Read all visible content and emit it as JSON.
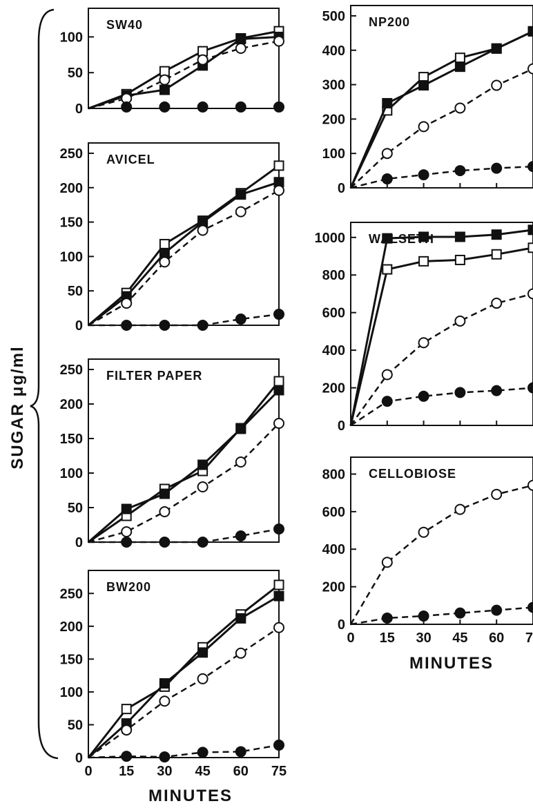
{
  "figure": {
    "ylabel": "SUGAR μg/ml",
    "xlabel_left": "MINUTES",
    "xlabel_right": "MINUTES"
  },
  "chart_data": [
    {
      "type": "line",
      "title": "SW40",
      "xlabel": "",
      "ylabel": "SUGAR μg/ml",
      "x": [
        15,
        30,
        45,
        60,
        75
      ],
      "xlim": [
        0,
        75
      ],
      "ylim": [
        0,
        140
      ],
      "yticks": [
        0,
        50,
        100
      ],
      "xticks": [],
      "series": [
        {
          "marker": "open-square",
          "style": "solid",
          "values": [
            20,
            52,
            80,
            98,
            108
          ]
        },
        {
          "marker": "filled-square",
          "style": "solid",
          "values": [
            18,
            26,
            60,
            97,
            100
          ]
        },
        {
          "marker": "open-circle",
          "style": "dashed",
          "values": [
            14,
            40,
            68,
            84,
            94
          ]
        },
        {
          "marker": "filled-circle",
          "style": "none",
          "values": [
            2,
            2,
            2,
            2,
            2
          ]
        }
      ]
    },
    {
      "type": "line",
      "title": "AVICEL",
      "xlabel": "",
      "ylabel": "SUGAR μg/ml",
      "x": [
        15,
        30,
        45,
        60,
        75
      ],
      "xlim": [
        0,
        75
      ],
      "ylim": [
        0,
        265
      ],
      "yticks": [
        0,
        50,
        100,
        150,
        200,
        250
      ],
      "xticks": [],
      "series": [
        {
          "marker": "open-square",
          "style": "solid",
          "values": [
            47,
            118,
            152,
            192,
            232
          ]
        },
        {
          "marker": "filled-square",
          "style": "solid",
          "values": [
            42,
            105,
            150,
            190,
            208
          ]
        },
        {
          "marker": "open-circle",
          "style": "dashed",
          "values": [
            32,
            92,
            138,
            165,
            196
          ]
        },
        {
          "marker": "filled-circle",
          "style": "dashed",
          "values": [
            0,
            0,
            0,
            9,
            16
          ]
        }
      ]
    },
    {
      "type": "line",
      "title": "FILTER PAPER",
      "xlabel": "",
      "ylabel": "SUGAR μg/ml",
      "x": [
        15,
        30,
        45,
        60,
        75
      ],
      "xlim": [
        0,
        75
      ],
      "ylim": [
        0,
        265
      ],
      "yticks": [
        0,
        50,
        100,
        150,
        200,
        250
      ],
      "xticks": [],
      "series": [
        {
          "marker": "open-square",
          "style": "solid",
          "values": [
            38,
            77,
            103,
            165,
            233
          ]
        },
        {
          "marker": "filled-square",
          "style": "solid",
          "values": [
            48,
            70,
            112,
            164,
            220
          ]
        },
        {
          "marker": "open-circle",
          "style": "dashed",
          "values": [
            15,
            44,
            80,
            116,
            172
          ]
        },
        {
          "marker": "filled-circle",
          "style": "dashed",
          "values": [
            0,
            0,
            0,
            9,
            19
          ]
        }
      ]
    },
    {
      "type": "line",
      "title": "BW200",
      "xlabel": "MINUTES",
      "ylabel": "SUGAR μg/ml",
      "x": [
        15,
        30,
        45,
        60,
        75
      ],
      "xlim": [
        0,
        75
      ],
      "ylim": [
        0,
        285
      ],
      "yticks": [
        0,
        50,
        100,
        150,
        200,
        250
      ],
      "xticks": [
        0,
        15,
        30,
        45,
        60,
        75
      ],
      "series": [
        {
          "marker": "open-square",
          "style": "solid",
          "values": [
            74,
            108,
            168,
            218,
            263
          ]
        },
        {
          "marker": "filled-square",
          "style": "solid",
          "values": [
            52,
            113,
            160,
            212,
            246
          ]
        },
        {
          "marker": "open-circle",
          "style": "dashed",
          "values": [
            42,
            86,
            120,
            159,
            198
          ]
        },
        {
          "marker": "filled-circle",
          "style": "dashed",
          "values": [
            2,
            1,
            8,
            9,
            19
          ]
        }
      ]
    },
    {
      "type": "line",
      "title": "NP200",
      "xlabel": "",
      "ylabel": "SUGAR μg/ml",
      "x": [
        15,
        30,
        45,
        60,
        75
      ],
      "xlim": [
        0,
        75
      ],
      "ylim": [
        0,
        530
      ],
      "yticks": [
        0,
        100,
        200,
        300,
        400,
        500
      ],
      "xticks": [],
      "series": [
        {
          "marker": "open-square",
          "style": "solid",
          "values": [
            225,
            322,
            378,
            405,
            455
          ]
        },
        {
          "marker": "filled-square",
          "style": "solid",
          "values": [
            246,
            298,
            352,
            405,
            455
          ]
        },
        {
          "marker": "open-circle",
          "style": "dashed",
          "values": [
            100,
            178,
            232,
            298,
            346
          ]
        },
        {
          "marker": "filled-circle",
          "style": "dashed",
          "values": [
            26,
            38,
            50,
            57,
            62
          ]
        }
      ]
    },
    {
      "type": "line",
      "title": "WALSETH",
      "xlabel": "",
      "ylabel": "SUGAR μg/ml",
      "x": [
        15,
        30,
        45,
        60,
        75
      ],
      "xlim": [
        0,
        75
      ],
      "ylim": [
        0,
        1080
      ],
      "yticks": [
        0,
        200,
        400,
        600,
        800,
        1000
      ],
      "xticks": [],
      "series": [
        {
          "marker": "open-square",
          "style": "solid",
          "values": [
            830,
            873,
            880,
            910,
            945
          ]
        },
        {
          "marker": "filled-square",
          "style": "solid",
          "values": [
            995,
            1003,
            1003,
            1015,
            1040
          ]
        },
        {
          "marker": "open-circle",
          "style": "dashed",
          "values": [
            270,
            440,
            555,
            650,
            700
          ]
        },
        {
          "marker": "filled-circle",
          "style": "dashed",
          "values": [
            128,
            155,
            175,
            185,
            200
          ]
        }
      ]
    },
    {
      "type": "line",
      "title": "CELLOBIOSE",
      "xlabel": "MINUTES",
      "ylabel": "SUGAR μg/ml",
      "x": [
        15,
        30,
        45,
        60,
        75
      ],
      "xlim": [
        0,
        75
      ],
      "ylim": [
        0,
        890
      ],
      "yticks": [
        0,
        200,
        400,
        600,
        800
      ],
      "xticks": [
        0,
        15,
        30,
        45,
        60,
        75
      ],
      "series": [
        {
          "marker": "open-circle",
          "style": "dashed",
          "values": [
            330,
            490,
            612,
            692,
            740
          ]
        },
        {
          "marker": "filled-circle",
          "style": "dashed",
          "values": [
            33,
            44,
            60,
            75,
            90
          ]
        }
      ]
    }
  ]
}
